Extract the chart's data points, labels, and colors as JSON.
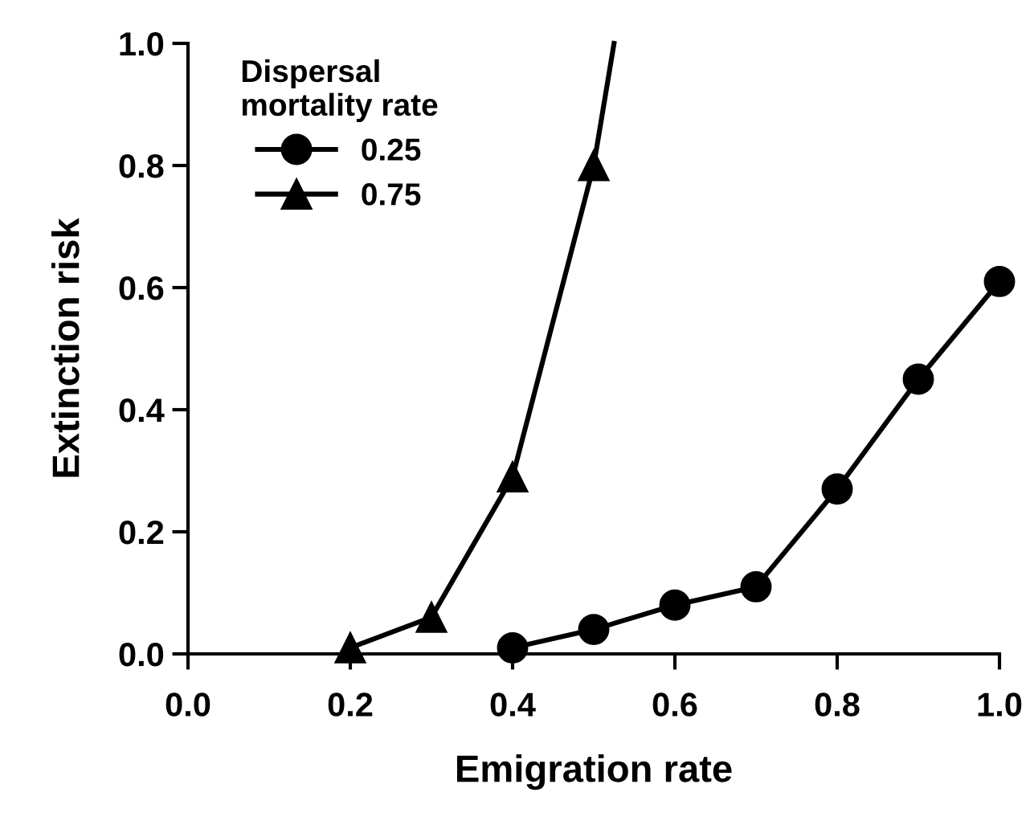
{
  "chart_data": {
    "type": "line",
    "xlabel": "Emigration rate",
    "ylabel": "Extinction risk",
    "legend_title": "Dispersal\nmortality rate",
    "xlim": [
      0.0,
      1.0
    ],
    "xticks": [
      {
        "value": 0.0,
        "label": "0.0"
      },
      {
        "value": 0.2,
        "label": "0.2"
      },
      {
        "value": 0.4,
        "label": "0.4"
      },
      {
        "value": 0.6,
        "label": "0.6"
      },
      {
        "value": 0.8,
        "label": "0.8"
      },
      {
        "value": 1.0,
        "label": "1.0"
      }
    ],
    "ylim": [
      0.0,
      1.0
    ],
    "yticks": [
      {
        "value": 0.0,
        "label": "0.0"
      },
      {
        "value": 0.2,
        "label": "0.2"
      },
      {
        "value": 0.4,
        "label": "0.4"
      },
      {
        "value": 0.6,
        "label": "0.6"
      },
      {
        "value": 0.8,
        "label": "0.8"
      },
      {
        "value": 1.0,
        "label": "1.0"
      }
    ],
    "grid": false,
    "legend": "top left",
    "line_style": "solid",
    "series": [
      {
        "name": "0.25",
        "color": "#000000",
        "marker": "circle",
        "x": [
          0.4,
          0.5,
          0.6,
          0.7,
          0.8,
          0.9,
          1.0
        ],
        "values": [
          0.01,
          0.04,
          0.08,
          0.11,
          0.27,
          0.45,
          0.61
        ]
      },
      {
        "name": "0.75",
        "color": "#000000",
        "marker": "triangle",
        "x": [
          0.2,
          0.3,
          0.4,
          0.5
        ],
        "values": [
          0.01,
          0.06,
          0.29,
          0.8
        ]
      },
      {
        "color": "#000000",
        "marker": "none",
        "x": [
          0.5,
          0.525
        ],
        "values": [
          0.8,
          1.0
        ]
      }
    ]
  }
}
